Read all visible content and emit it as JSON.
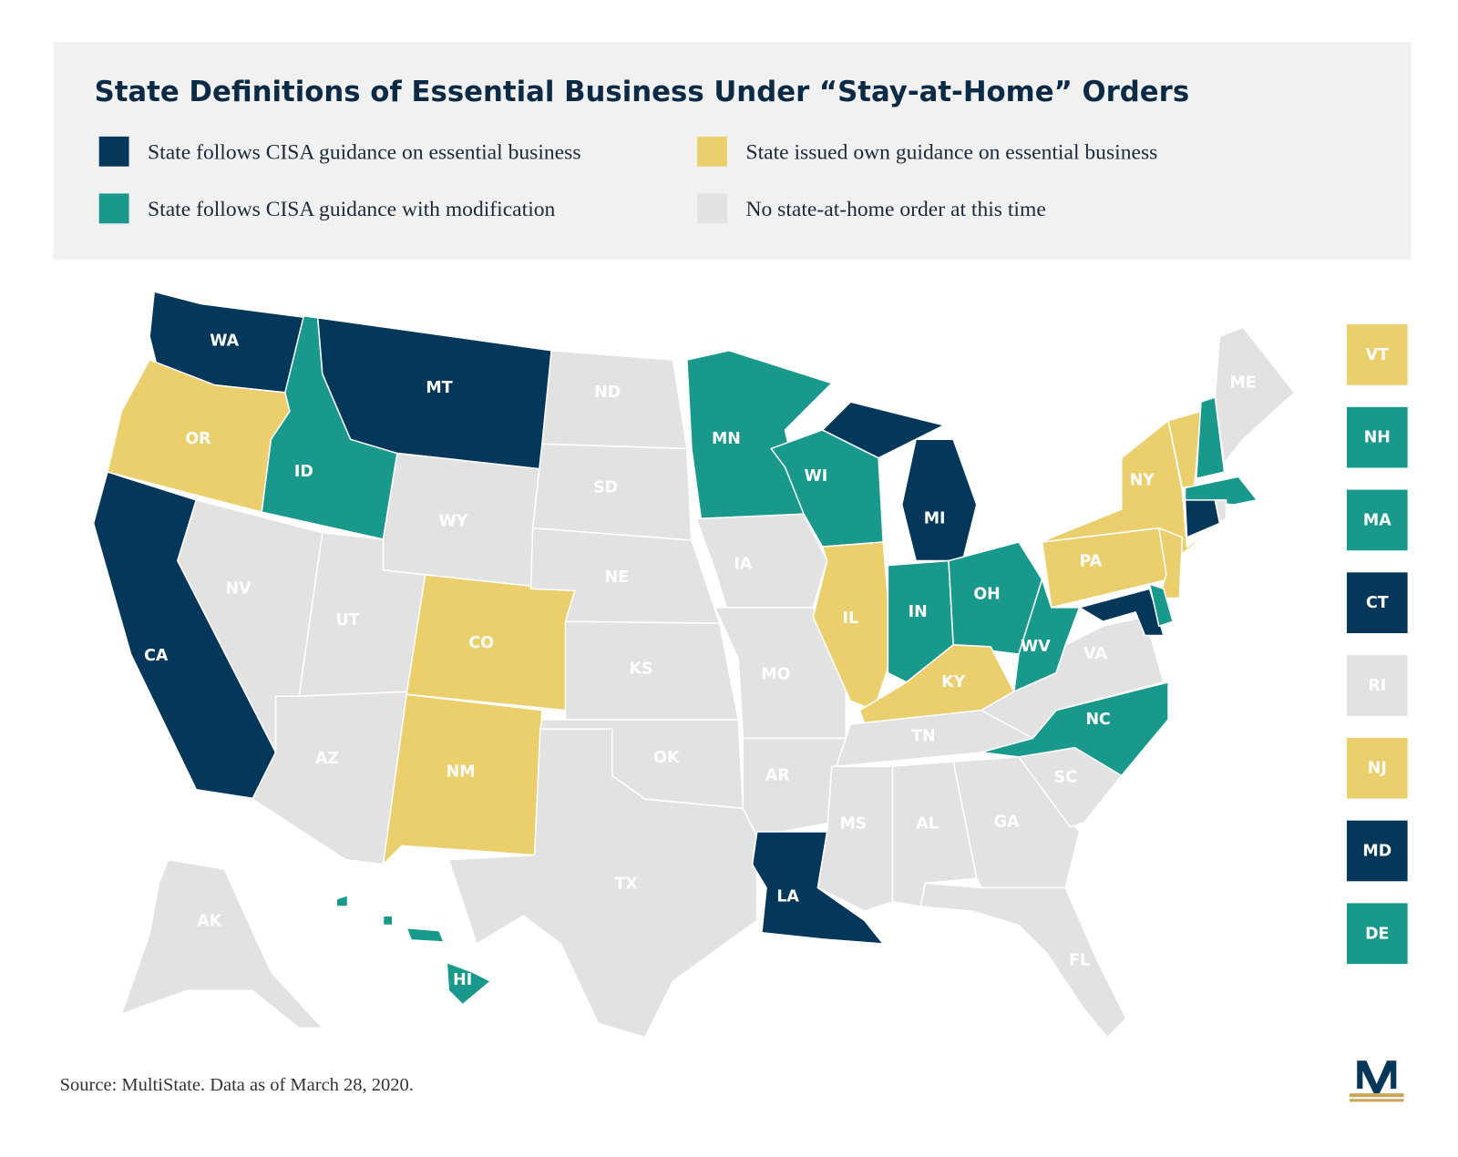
{
  "header": {
    "title": "State Definitions of Essential Business Under “Stay-at-Home” Orders"
  },
  "legend": [
    {
      "label": "State follows CISA guidance on essential business",
      "color": "#05375a"
    },
    {
      "label": "State issued own guidance on essential business",
      "color": "#ebcf6d"
    },
    {
      "label": "State follows CISA guidance with modification",
      "color": "#18998b"
    },
    {
      "label": "No state-at-home order at this time",
      "color": "#e2e2e2"
    }
  ],
  "states": [
    {
      "label": "WA",
      "category": 0
    },
    {
      "label": "OR",
      "category": 1
    },
    {
      "label": "CA",
      "category": 0
    },
    {
      "label": "ID",
      "category": 2
    },
    {
      "label": "MT",
      "category": 0
    },
    {
      "label": "WY",
      "category": 3
    },
    {
      "label": "NV",
      "category": 3
    },
    {
      "label": "UT",
      "category": 3
    },
    {
      "label": "AZ",
      "category": 3
    },
    {
      "label": "CO",
      "category": 1
    },
    {
      "label": "NM",
      "category": 1
    },
    {
      "label": "ND",
      "category": 3
    },
    {
      "label": "SD",
      "category": 3
    },
    {
      "label": "NE",
      "category": 3
    },
    {
      "label": "KS",
      "category": 3
    },
    {
      "label": "OK",
      "category": 3
    },
    {
      "label": "TX",
      "category": 3
    },
    {
      "label": "MN",
      "category": 2
    },
    {
      "label": "IA",
      "category": 3
    },
    {
      "label": "MO",
      "category": 3
    },
    {
      "label": "AR",
      "category": 3
    },
    {
      "label": "LA",
      "category": 0
    },
    {
      "label": "WI",
      "category": 2
    },
    {
      "label": "MI",
      "category": 0
    },
    {
      "label": "IL",
      "category": 1
    },
    {
      "label": "IN",
      "category": 2
    },
    {
      "label": "OH",
      "category": 2
    },
    {
      "label": "KY",
      "category": 1
    },
    {
      "label": "TN",
      "category": 3
    },
    {
      "label": "MS",
      "category": 3
    },
    {
      "label": "AL",
      "category": 3
    },
    {
      "label": "GA",
      "category": 3
    },
    {
      "label": "FL",
      "category": 3
    },
    {
      "label": "SC",
      "category": 3
    },
    {
      "label": "NC",
      "category": 2
    },
    {
      "label": "VA",
      "category": 3
    },
    {
      "label": "WV",
      "category": 2
    },
    {
      "label": "PA",
      "category": 1
    },
    {
      "label": "NY",
      "category": 1
    },
    {
      "label": "ME",
      "category": 3
    },
    {
      "label": "AK",
      "category": 3
    },
    {
      "label": "HI",
      "category": 2
    }
  ],
  "small_states": [
    {
      "label": "VT",
      "category": 1
    },
    {
      "label": "NH",
      "category": 2
    },
    {
      "label": "MA",
      "category": 2
    },
    {
      "label": "CT",
      "category": 0
    },
    {
      "label": "RI",
      "category": 3
    },
    {
      "label": "NJ",
      "category": 1
    },
    {
      "label": "MD",
      "category": 0
    },
    {
      "label": "DE",
      "category": 2
    }
  ],
  "footer": {
    "source": "Source: MultiState. Data as of March 28, 2020."
  }
}
